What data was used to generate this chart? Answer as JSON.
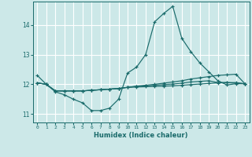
{
  "background_color": "#cce8e8",
  "grid_color": "#ffffff",
  "line_color": "#1a6b6b",
  "xlabel": "Humidex (Indice chaleur)",
  "xlim": [
    -0.5,
    23.5
  ],
  "ylim": [
    10.72,
    14.78
  ],
  "yticks": [
    11,
    12,
    13,
    14
  ],
  "xticks": [
    0,
    1,
    2,
    3,
    4,
    5,
    6,
    7,
    8,
    9,
    10,
    11,
    12,
    13,
    14,
    15,
    16,
    17,
    18,
    19,
    20,
    21,
    22,
    23
  ],
  "lines": [
    {
      "x": [
        0,
        1,
        2,
        3,
        4,
        5,
        6,
        7,
        8,
        9,
        10,
        11,
        12,
        13,
        14,
        15,
        16,
        17,
        18,
        19,
        20,
        21,
        22,
        23
      ],
      "y": [
        12.3,
        12.0,
        11.75,
        11.65,
        11.5,
        11.38,
        11.12,
        11.12,
        11.2,
        11.5,
        12.38,
        12.58,
        13.0,
        14.1,
        14.38,
        14.62,
        13.55,
        13.1,
        12.72,
        12.42,
        12.12,
        11.98,
        12.02,
        12.02
      ]
    },
    {
      "x": [
        0,
        1,
        2,
        3,
        4,
        5,
        6,
        7,
        8,
        9,
        10,
        11,
        12,
        13,
        14,
        15,
        16,
        17,
        18,
        19,
        20,
        21,
        22,
        23
      ],
      "y": [
        12.05,
        12.0,
        11.78,
        11.78,
        11.78,
        11.78,
        11.8,
        11.82,
        11.84,
        11.86,
        11.9,
        11.94,
        11.97,
        12.0,
        12.04,
        12.08,
        12.12,
        12.18,
        12.22,
        12.26,
        12.3,
        12.32,
        12.34,
        12.02
      ]
    },
    {
      "x": [
        0,
        1,
        2,
        3,
        4,
        5,
        6,
        7,
        8,
        9,
        10,
        11,
        12,
        13,
        14,
        15,
        16,
        17,
        18,
        19,
        20,
        21,
        22,
        23
      ],
      "y": [
        12.05,
        12.0,
        11.78,
        11.78,
        11.78,
        11.78,
        11.8,
        11.82,
        11.84,
        11.86,
        11.9,
        11.93,
        11.95,
        11.97,
        11.99,
        12.01,
        12.04,
        12.08,
        12.1,
        12.12,
        12.06,
        12.06,
        12.06,
        12.02
      ]
    },
    {
      "x": [
        0,
        1,
        2,
        3,
        4,
        5,
        6,
        7,
        8,
        9,
        10,
        11,
        12,
        13,
        14,
        15,
        16,
        17,
        18,
        19,
        20,
        21,
        22,
        23
      ],
      "y": [
        12.05,
        12.0,
        11.78,
        11.78,
        11.78,
        11.78,
        11.8,
        11.82,
        11.84,
        11.86,
        11.9,
        11.91,
        11.92,
        11.93,
        11.94,
        11.95,
        11.97,
        11.99,
        12.01,
        12.03,
        12.05,
        12.06,
        12.04,
        12.02
      ]
    }
  ]
}
